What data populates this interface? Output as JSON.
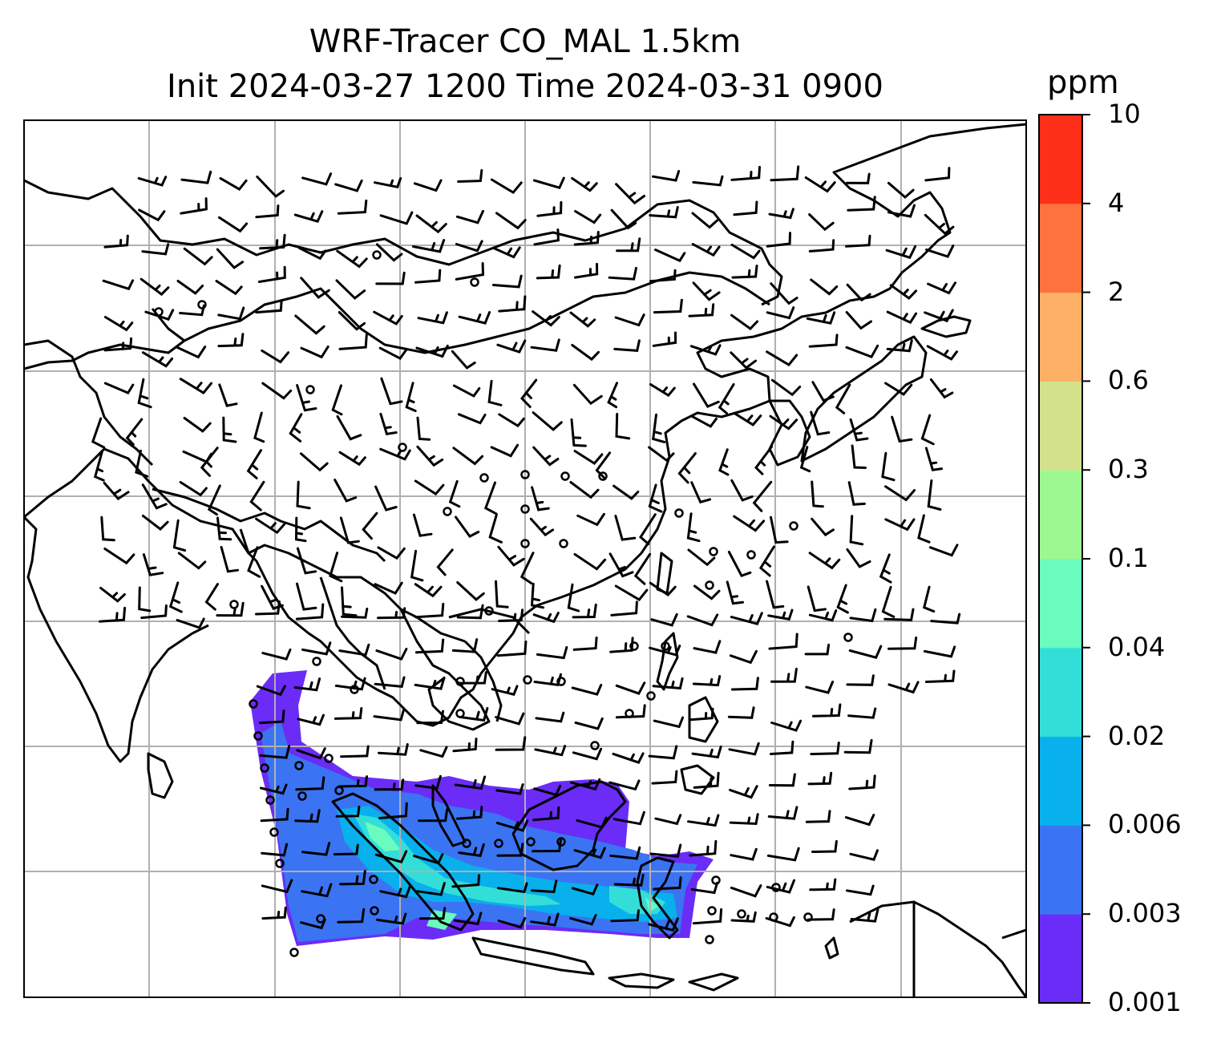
{
  "title": {
    "line1": "WRF-Tracer CO_MAL 1.5km",
    "line2": "Init 2024-03-27 1200 Time 2024-03-31 0900"
  },
  "colorbar": {
    "unit": "ppm",
    "ticks": [
      "0.001",
      "0.003",
      "0.006",
      "0.02",
      "0.04",
      "0.1",
      "0.3",
      "0.6",
      "2",
      "4",
      "10"
    ],
    "colors": [
      "#6a2cf6",
      "#3a74f3",
      "#08b0ec",
      "#34ded8",
      "#6afbbe",
      "#9df892",
      "#d2e18a",
      "#fdb066",
      "#fe723e",
      "#fe2f18"
    ]
  },
  "map": {
    "land_outline_color": "#000000",
    "grid_color": "#b0b0b0",
    "overlay": "wind barbs",
    "calm_marker": "circle"
  }
}
